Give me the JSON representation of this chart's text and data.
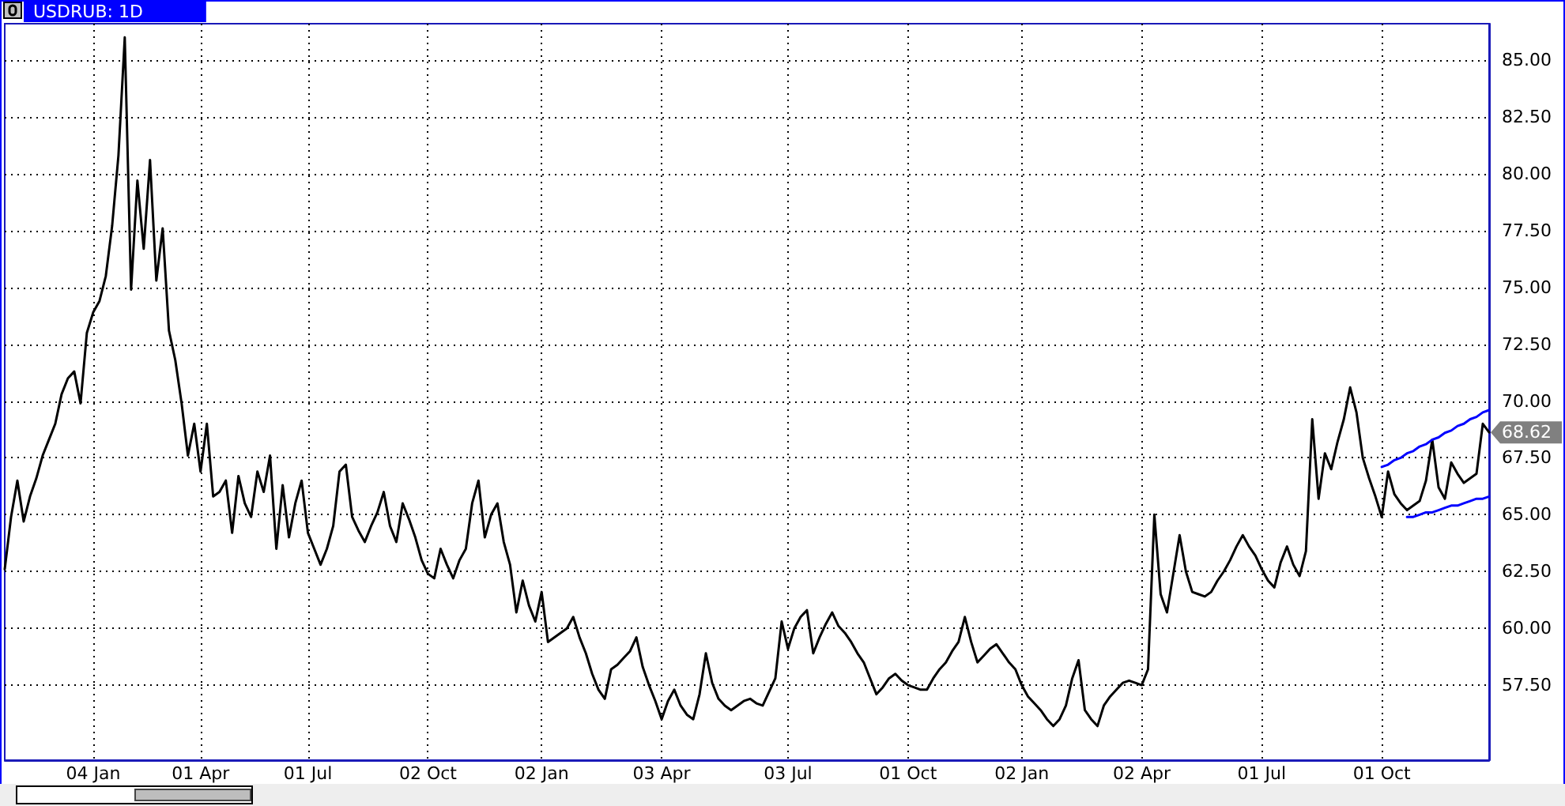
{
  "chart_data": {
    "type": "line",
    "title": "USDRUB: 1D",
    "categories": [
      null,
      null,
      null,
      null,
      null,
      null,
      null,
      null,
      null,
      null,
      null,
      null,
      null,
      null,
      "04 Jan",
      null,
      null,
      null,
      null,
      null,
      null,
      null,
      null,
      null,
      null,
      null,
      null,
      null,
      null,
      null,
      null,
      "01 Apr",
      null,
      null,
      null,
      null,
      null,
      null,
      null,
      null,
      null,
      null,
      null,
      null,
      null,
      null,
      null,
      null,
      "01 Jul",
      null,
      null,
      null,
      null,
      null,
      null,
      null,
      null,
      null,
      null,
      null,
      null,
      null,
      null,
      null,
      null,
      null,
      null,
      "02 Oct",
      null,
      null,
      null,
      null,
      null,
      null,
      null,
      null,
      null,
      null,
      null,
      null,
      null,
      null,
      null,
      null,
      null,
      "02 Jan",
      null,
      null,
      null,
      null,
      null,
      null,
      null,
      null,
      null,
      null,
      null,
      null,
      null,
      null,
      null,
      null,
      null,
      null,
      "03 Apr",
      null,
      null,
      null,
      null,
      null,
      null,
      null,
      null,
      null,
      null,
      null,
      null,
      null,
      null,
      null,
      null,
      null,
      null,
      null,
      "03 Jul",
      null,
      null,
      null,
      null,
      null,
      null,
      null,
      null,
      null,
      null,
      null,
      null,
      null,
      null,
      null,
      null,
      null,
      null,
      "01 Oct",
      null,
      null,
      null,
      null,
      null,
      null,
      null,
      null,
      null,
      null,
      null,
      null,
      null,
      null,
      null,
      null,
      null,
      "02 Jan",
      null,
      null,
      null,
      null,
      null,
      null,
      null,
      null,
      null,
      null,
      null,
      null,
      null,
      null,
      null,
      null,
      null,
      null,
      "02 Apr",
      null,
      null,
      null,
      null,
      null,
      null,
      null,
      null,
      null,
      null,
      null,
      null,
      null,
      null,
      null,
      null,
      null,
      null,
      "01 Jul",
      null,
      null,
      null,
      null,
      null,
      null,
      null,
      null,
      null,
      null,
      null,
      null,
      null,
      null,
      null,
      null,
      null,
      null,
      "01 Oct",
      null,
      null,
      null,
      null,
      null,
      null,
      null,
      null,
      null,
      null,
      null,
      null,
      null,
      null,
      null,
      null,
      null
    ],
    "series": [
      {
        "color": "#000000",
        "values": [
          62.6,
          64.9,
          66.5,
          64.7,
          65.8,
          66.6,
          67.6,
          68.3,
          69.0,
          70.3,
          71.0,
          71.3,
          69.9,
          73.0,
          73.9,
          74.4,
          75.5,
          77.7,
          80.8,
          86.0,
          74.9,
          79.7,
          76.7,
          80.6,
          75.3,
          77.6,
          73.1,
          71.8,
          69.9,
          67.6,
          69.0,
          66.9,
          69.0,
          65.8,
          66.0,
          66.5,
          64.2,
          66.7,
          65.5,
          64.9,
          66.9,
          66.0,
          67.6,
          63.5,
          66.3,
          64.0,
          65.5,
          66.5,
          64.2,
          63.5,
          62.8,
          63.5,
          64.5,
          66.9,
          67.2,
          64.9,
          64.3,
          63.8,
          64.5,
          65.1,
          66.0,
          64.5,
          63.8,
          65.5,
          64.8,
          64.0,
          63.0,
          62.4,
          62.2,
          63.5,
          62.8,
          62.2,
          63.0,
          63.5,
          65.5,
          66.5,
          64.0,
          65.0,
          65.5,
          63.8,
          62.8,
          60.7,
          62.1,
          61.0,
          60.3,
          61.6,
          59.4,
          59.6,
          59.8,
          60.0,
          60.5,
          59.6,
          58.9,
          58.0,
          57.3,
          56.9,
          58.2,
          58.4,
          58.7,
          59.0,
          59.6,
          58.3,
          57.5,
          56.8,
          56.0,
          56.8,
          57.3,
          56.6,
          56.2,
          56.0,
          57.1,
          58.9,
          57.6,
          56.9,
          56.6,
          56.4,
          56.6,
          56.8,
          56.9,
          56.7,
          56.6,
          57.2,
          57.8,
          60.3,
          59.1,
          60.0,
          60.5,
          60.8,
          58.9,
          59.6,
          60.2,
          60.7,
          60.1,
          59.8,
          59.4,
          58.9,
          58.5,
          57.8,
          57.1,
          57.4,
          57.8,
          58.0,
          57.7,
          57.5,
          57.4,
          57.3,
          57.3,
          57.8,
          58.2,
          58.5,
          59.0,
          59.4,
          60.5,
          59.4,
          58.5,
          58.8,
          59.1,
          59.3,
          58.9,
          58.5,
          58.2,
          57.5,
          57.0,
          56.7,
          56.4,
          56.0,
          55.7,
          56.0,
          56.6,
          57.8,
          58.6,
          56.4,
          56.0,
          55.7,
          56.6,
          57.0,
          57.3,
          57.6,
          57.7,
          57.6,
          57.5,
          58.2,
          65.0,
          61.5,
          60.7,
          62.4,
          64.1,
          62.5,
          61.6,
          61.5,
          61.4,
          61.6,
          62.1,
          62.5,
          63.0,
          63.6,
          64.1,
          63.6,
          63.2,
          62.6,
          62.1,
          61.8,
          62.9,
          63.6,
          62.8,
          62.3,
          63.4,
          69.2,
          65.7,
          67.7,
          67.0,
          68.2,
          69.2,
          70.6,
          69.5,
          67.5,
          66.6,
          65.8,
          64.9,
          66.9,
          65.9,
          65.5,
          65.2,
          65.4,
          65.6,
          66.5,
          68.3,
          66.2,
          65.7,
          67.3,
          66.8,
          66.4,
          66.6,
          66.8,
          69.0,
          68.62
        ]
      },
      {
        "type": "line",
        "color": "#0000ff",
        "values": [
          null,
          null,
          null,
          null,
          null,
          null,
          null,
          null,
          null,
          null,
          null,
          null,
          null,
          null,
          null,
          null,
          null,
          null,
          null,
          null,
          null,
          null,
          null,
          null,
          null,
          null,
          null,
          null,
          null,
          null,
          null,
          null,
          null,
          null,
          null,
          null,
          null,
          null,
          null,
          null,
          null,
          null,
          null,
          null,
          null,
          null,
          null,
          null,
          null,
          null,
          null,
          null,
          null,
          null,
          null,
          null,
          null,
          null,
          null,
          null,
          null,
          null,
          null,
          null,
          null,
          null,
          null,
          null,
          null,
          null,
          null,
          null,
          null,
          null,
          null,
          null,
          null,
          null,
          null,
          null,
          null,
          null,
          null,
          null,
          null,
          null,
          null,
          null,
          null,
          null,
          null,
          null,
          null,
          null,
          null,
          null,
          null,
          null,
          null,
          null,
          null,
          null,
          null,
          null,
          null,
          null,
          null,
          null,
          null,
          null,
          null,
          null,
          null,
          null,
          null,
          null,
          null,
          null,
          null,
          null,
          null,
          null,
          null,
          null,
          null,
          null,
          null,
          null,
          null,
          null,
          null,
          null,
          null,
          null,
          null,
          null,
          null,
          null,
          null,
          null,
          null,
          null,
          null,
          null,
          null,
          null,
          null,
          null,
          null,
          null,
          null,
          null,
          null,
          null,
          null,
          null,
          null,
          null,
          null,
          null,
          null,
          null,
          null,
          null,
          null,
          null,
          null,
          null,
          null,
          null,
          null,
          null,
          null,
          null,
          null,
          null,
          null,
          null,
          null,
          null,
          null,
          null,
          null,
          null,
          null,
          null,
          null,
          null,
          null,
          null,
          null,
          null,
          null,
          null,
          null,
          null,
          null,
          null,
          null,
          null,
          null,
          null,
          null,
          null,
          null,
          null,
          null,
          null,
          null,
          null,
          null,
          null,
          null,
          null,
          null,
          null,
          null,
          null,
          67.1,
          67.2,
          67.4,
          67.5,
          67.7,
          67.8,
          68.0,
          68.1,
          68.3,
          68.4,
          68.6,
          68.7,
          68.9,
          69.0,
          69.2,
          69.3,
          69.5,
          69.6
        ]
      },
      {
        "type": "line",
        "color": "#0000ff",
        "values": [
          null,
          null,
          null,
          null,
          null,
          null,
          null,
          null,
          null,
          null,
          null,
          null,
          null,
          null,
          null,
          null,
          null,
          null,
          null,
          null,
          null,
          null,
          null,
          null,
          null,
          null,
          null,
          null,
          null,
          null,
          null,
          null,
          null,
          null,
          null,
          null,
          null,
          null,
          null,
          null,
          null,
          null,
          null,
          null,
          null,
          null,
          null,
          null,
          null,
          null,
          null,
          null,
          null,
          null,
          null,
          null,
          null,
          null,
          null,
          null,
          null,
          null,
          null,
          null,
          null,
          null,
          null,
          null,
          null,
          null,
          null,
          null,
          null,
          null,
          null,
          null,
          null,
          null,
          null,
          null,
          null,
          null,
          null,
          null,
          null,
          null,
          null,
          null,
          null,
          null,
          null,
          null,
          null,
          null,
          null,
          null,
          null,
          null,
          null,
          null,
          null,
          null,
          null,
          null,
          null,
          null,
          null,
          null,
          null,
          null,
          null,
          null,
          null,
          null,
          null,
          null,
          null,
          null,
          null,
          null,
          null,
          null,
          null,
          null,
          null,
          null,
          null,
          null,
          null,
          null,
          null,
          null,
          null,
          null,
          null,
          null,
          null,
          null,
          null,
          null,
          null,
          null,
          null,
          null,
          null,
          null,
          null,
          null,
          null,
          null,
          null,
          null,
          null,
          null,
          null,
          null,
          null,
          null,
          null,
          null,
          null,
          null,
          null,
          null,
          null,
          null,
          null,
          null,
          null,
          null,
          null,
          null,
          null,
          null,
          null,
          null,
          null,
          null,
          null,
          null,
          null,
          null,
          null,
          null,
          null,
          null,
          null,
          null,
          null,
          null,
          null,
          null,
          null,
          null,
          null,
          null,
          null,
          null,
          null,
          null,
          null,
          null,
          null,
          null,
          null,
          null,
          null,
          null,
          null,
          null,
          null,
          null,
          null,
          null,
          null,
          null,
          null,
          null,
          null,
          null,
          null,
          null,
          64.9,
          64.9,
          65.0,
          65.1,
          65.1,
          65.2,
          65.3,
          65.4,
          65.4,
          65.5,
          65.6,
          65.7,
          65.7,
          65.8
        ]
      }
    ],
    "ylim": [
      54.2,
      86.6
    ],
    "yticks": [
      {
        "value": 57.5,
        "label": "57.50"
      },
      {
        "value": 60,
        "label": "60.00"
      },
      {
        "value": 62.5,
        "label": "62.50"
      },
      {
        "value": 65,
        "label": "65.00"
      },
      {
        "value": 67.5,
        "label": "67.50"
      },
      {
        "value": 70,
        "label": "70.00"
      },
      {
        "value": 72.5,
        "label": "72.50"
      },
      {
        "value": 75,
        "label": "75.00"
      },
      {
        "value": 77.5,
        "label": "77.50"
      },
      {
        "value": 80,
        "label": "80.00"
      },
      {
        "value": 82.5,
        "label": "82.50"
      },
      {
        "value": 85,
        "label": "85.00"
      }
    ],
    "annotations": [
      "68.62"
    ],
    "grid": true
  }
}
